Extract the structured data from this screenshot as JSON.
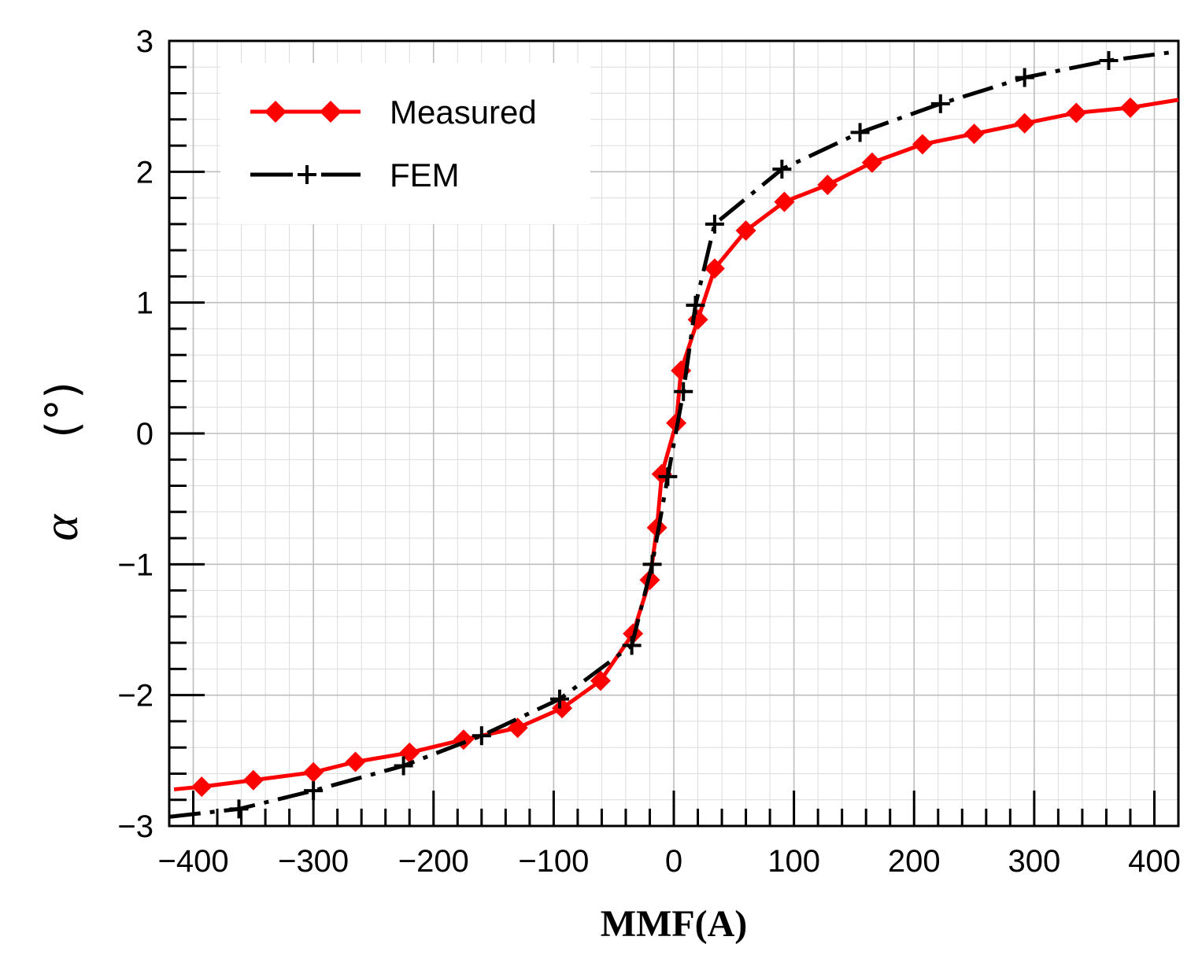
{
  "chart_data": {
    "type": "line",
    "title": "",
    "xlabel": "MMF(A)",
    "ylabel_symbol": "α",
    "ylabel_unit": "(°)",
    "xlim": [
      -420,
      420
    ],
    "ylim": [
      -3,
      3
    ],
    "xticks": [
      -400,
      -300,
      -200,
      -100,
      0,
      100,
      200,
      300,
      400
    ],
    "xtick_labels": [
      "−400",
      "−300",
      "−200",
      "−100",
      "0",
      "100",
      "200",
      "300",
      "400"
    ],
    "yticks": [
      -3,
      -2,
      -1,
      0,
      1,
      2,
      3
    ],
    "ytick_labels": [
      "−3",
      "−2",
      "−1",
      "0",
      "1",
      "2",
      "3"
    ],
    "grid": true,
    "legend_position": "top-left",
    "series": [
      {
        "name": "Measured",
        "color": "#ff0000",
        "marker": "diamond",
        "line_style": "solid",
        "x": [
          -416,
          -393,
          -350,
          -300,
          -265,
          -220,
          -175,
          -130,
          -93,
          -61,
          -34,
          -20,
          -14,
          -10,
          2,
          6,
          20,
          34,
          60,
          92,
          128,
          165,
          207,
          250,
          292,
          335,
          380,
          420
        ],
        "y": [
          -2.72,
          -2.7,
          -2.65,
          -2.59,
          -2.51,
          -2.44,
          -2.34,
          -2.25,
          -2.1,
          -1.89,
          -1.53,
          -1.12,
          -0.72,
          -0.31,
          0.08,
          0.48,
          0.87,
          1.26,
          1.55,
          1.77,
          1.9,
          2.07,
          2.21,
          2.29,
          2.37,
          2.45,
          2.49,
          2.55
        ],
        "marker_x": [
          -393,
          -350,
          -300,
          -265,
          -220,
          -175,
          -130,
          -93,
          -61,
          -34,
          -20,
          -14,
          -10,
          2,
          6,
          20,
          34,
          60,
          92,
          128,
          165,
          207,
          250,
          292,
          335,
          380
        ],
        "marker_y": [
          -2.7,
          -2.65,
          -2.59,
          -2.51,
          -2.44,
          -2.34,
          -2.25,
          -2.1,
          -1.89,
          -1.53,
          -1.12,
          -0.72,
          -0.31,
          0.08,
          0.48,
          0.87,
          1.26,
          1.55,
          1.77,
          1.9,
          2.07,
          2.21,
          2.29,
          2.37,
          2.45,
          2.49
        ]
      },
      {
        "name": "FEM",
        "color": "#000000",
        "marker": "plus",
        "line_style": "dashdot",
        "x": [
          -420,
          -362,
          -300,
          -225,
          -160,
          -95,
          -35,
          -18,
          -5,
          8,
          18,
          34,
          90,
          155,
          222,
          292,
          362,
          420
        ],
        "y": [
          -2.93,
          -2.87,
          -2.73,
          -2.54,
          -2.31,
          -2.03,
          -1.62,
          -1.0,
          -0.33,
          0.32,
          0.98,
          1.6,
          2.02,
          2.3,
          2.52,
          2.72,
          2.85,
          2.92
        ],
        "marker_x": [
          -362,
          -300,
          -225,
          -160,
          -95,
          -35,
          -18,
          -5,
          8,
          18,
          34,
          90,
          155,
          222,
          292,
          362
        ],
        "marker_y": [
          -2.87,
          -2.73,
          -2.54,
          -2.31,
          -2.03,
          -1.62,
          -1.0,
          -0.33,
          0.32,
          0.98,
          1.6,
          2.02,
          2.3,
          2.52,
          2.72,
          2.85
        ]
      }
    ]
  }
}
